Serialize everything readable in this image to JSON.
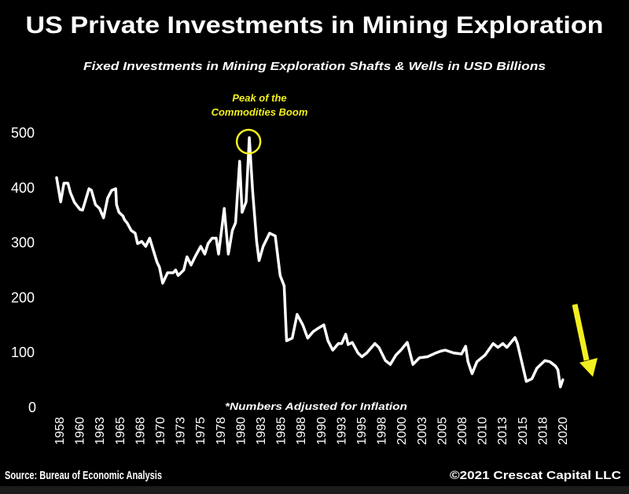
{
  "chart_data": {
    "type": "line",
    "title": "US Private Investments in Mining Exploration",
    "subtitle": "Fixed Investments in Mining Exploration Shafts & Wells in USD Billions",
    "xlabel": "",
    "ylabel": "",
    "ylim": [
      0,
      500
    ],
    "xlim": [
      1958,
      2020.5
    ],
    "grid": false,
    "yticks": [
      "0",
      "100",
      "200",
      "300",
      "400",
      "500"
    ],
    "xticks": [
      "1958",
      "1960",
      "1963",
      "1965",
      "1968",
      "1970",
      "1973",
      "1975",
      "1978",
      "1980",
      "1983",
      "1985",
      "1988",
      "1990",
      "1993",
      "1995",
      "1998",
      "2000",
      "2003",
      "2005",
      "2008",
      "2010",
      "2013",
      "2015",
      "2018",
      "2020"
    ],
    "line_color": "#ffffff",
    "annotation": {
      "text_line1": "Peak of the",
      "text_line2": "Commodities Boom",
      "year": 1981.8,
      "value": 490,
      "color": "#f2ef1f"
    },
    "note": "*Numbers Adjusted for Inflation",
    "arrow": {
      "direction": "down",
      "color": "#f2ef1f"
    },
    "series": [
      {
        "x": [
          1958.0,
          1958.5,
          1958.9,
          1959.4,
          1959.7,
          1960.2,
          1960.9,
          1961.2,
          1962.0,
          1962.3,
          1962.8,
          1963.3,
          1963.8,
          1964.3,
          1964.8,
          1965.3,
          1965.4,
          1965.7,
          1966.2,
          1966.4,
          1966.7,
          1967.2,
          1967.7,
          1968.0,
          1968.5,
          1969.0,
          1969.5,
          1969.9,
          1970.4,
          1970.7,
          1971.1,
          1971.7,
          1972.4,
          1972.7,
          1973.0,
          1973.7,
          1974.1,
          1974.6,
          1975.1,
          1975.8,
          1976.3,
          1976.7,
          1977.2,
          1977.7,
          1978.0,
          1978.4,
          1978.7,
          1979.2,
          1979.7,
          1980.1,
          1980.6,
          1980.9,
          1981.4,
          1981.8,
          1982.2,
          1982.7,
          1983.0,
          1983.5,
          1984.3,
          1985.0,
          1985.6,
          1986.1,
          1986.4,
          1987.1,
          1987.7,
          1988.4,
          1989.0,
          1989.7,
          1990.2,
          1991.0,
          1991.5,
          1992.1,
          1992.8,
          1993.2,
          1993.7,
          1994.0,
          1994.5,
          1995.2,
          1995.7,
          1996.3,
          1997.3,
          1997.8,
          1998.6,
          1999.2,
          1999.9,
          2000.5,
          2001.3,
          2002.0,
          2002.8,
          2003.8,
          2004.7,
          2005.4,
          2006.0,
          2007.0,
          2008.0,
          2008.5,
          2008.8,
          2009.3,
          2009.9,
          2010.9,
          2011.9,
          2012.5,
          2013.1,
          2013.6,
          2014.6,
          2014.9,
          2015.4,
          2016.0,
          2016.7,
          2017.3,
          2018.3,
          2018.9,
          2019.6,
          2019.9,
          2020.2,
          2020.5
        ],
        "values": [
          417,
          373,
          407,
          407,
          390,
          372,
          359,
          358,
          397,
          394,
          368,
          361,
          344,
          380,
          394,
          397,
          368,
          354,
          347,
          340,
          335,
          321,
          316,
          297,
          301,
          292,
          307,
          287,
          263,
          254,
          225,
          244,
          244,
          249,
          239,
          249,
          273,
          258,
          273,
          292,
          278,
          297,
          307,
          307,
          278,
          325,
          361,
          278,
          321,
          335,
          447,
          354,
          373,
          490,
          393,
          301,
          266,
          292,
          316,
          311,
          239,
          220,
          120,
          125,
          168,
          149,
          125,
          137,
          142,
          149,
          120,
          103,
          115,
          115,
          132,
          113,
          117,
          98,
          91,
          98,
          115,
          108,
          84,
          77,
          94,
          103,
          117,
          77,
          89,
          91,
          97,
          101,
          103,
          98,
          96,
          110,
          82,
          60,
          82,
          94,
          115,
          108,
          115,
          108,
          126,
          115,
          84,
          46,
          51,
          70,
          84,
          82,
          74,
          67,
          36,
          49
        ]
      }
    ]
  },
  "footer": {
    "source": "Source: Bureau of Economic Analysis",
    "copyright": "©2021 Crescat Capital LLC"
  }
}
